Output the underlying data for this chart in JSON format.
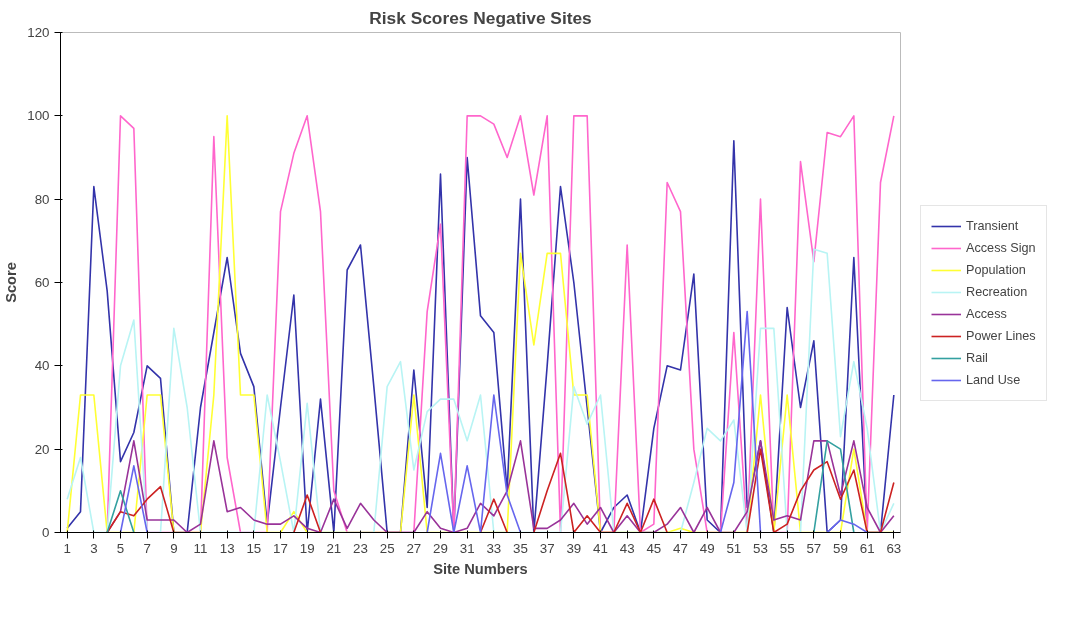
{
  "chart_data": {
    "type": "line",
    "title": "Risk Scores Negative Sites",
    "xlabel": "Site Numbers",
    "ylabel": "Score",
    "x": [
      1,
      2,
      3,
      4,
      5,
      6,
      7,
      8,
      9,
      10,
      11,
      12,
      13,
      14,
      15,
      16,
      17,
      18,
      19,
      20,
      21,
      22,
      23,
      24,
      25,
      26,
      27,
      28,
      29,
      30,
      31,
      32,
      33,
      34,
      35,
      36,
      37,
      38,
      39,
      40,
      41,
      42,
      43,
      44,
      45,
      46,
      47,
      48,
      49,
      50,
      51,
      52,
      53,
      54,
      55,
      56,
      57,
      58,
      59,
      60,
      61,
      62,
      63
    ],
    "xlim": [
      0.5,
      63.5
    ],
    "xticks": [
      1,
      3,
      5,
      7,
      9,
      11,
      13,
      15,
      17,
      19,
      21,
      23,
      25,
      27,
      29,
      31,
      33,
      35,
      37,
      39,
      41,
      43,
      45,
      47,
      49,
      51,
      53,
      55,
      57,
      59,
      61,
      63
    ],
    "ylim": [
      0,
      120
    ],
    "yticks": [
      0,
      20,
      40,
      60,
      80,
      100,
      120
    ],
    "grid": false,
    "legend": "right",
    "marker": "none",
    "line_style": "solid",
    "series": [
      {
        "name": "Transient",
        "color": "#3333aa",
        "values": [
          1,
          5,
          83,
          58,
          17,
          24,
          40,
          37,
          0,
          0,
          30,
          48,
          66,
          43,
          35,
          2,
          30,
          57,
          0,
          32,
          0,
          63,
          69,
          35,
          0,
          0,
          39,
          6,
          86,
          0,
          90,
          52,
          48,
          10,
          80,
          0,
          40,
          83,
          60,
          30,
          0,
          6,
          9,
          0,
          25,
          40,
          39,
          62,
          3,
          0,
          94,
          6,
          22,
          0,
          54,
          30,
          46,
          0,
          3,
          66,
          0,
          0,
          33
        ]
      },
      {
        "name": "Access Sign",
        "color": "#ff66cc",
        "values": [
          null,
          null,
          null,
          0,
          100,
          97,
          0,
          0,
          0,
          0,
          0,
          95,
          18,
          0,
          0,
          0,
          77,
          91,
          100,
          77,
          10,
          0,
          0,
          0,
          0,
          0,
          0,
          53,
          74,
          0,
          100,
          100,
          98,
          90,
          100,
          81,
          100,
          0,
          100,
          100,
          0,
          0,
          69,
          0,
          2,
          84,
          77,
          20,
          0,
          0,
          48,
          0,
          80,
          0,
          0,
          89,
          65,
          96,
          95,
          100,
          0,
          84,
          100
        ]
      },
      {
        "name": "Population",
        "color": "#ffff33",
        "values": [
          0,
          33,
          33,
          0,
          0,
          0,
          33,
          33,
          0,
          0,
          0,
          33,
          100,
          33,
          33,
          0,
          0,
          5,
          0,
          0,
          0,
          0,
          0,
          0,
          0,
          0,
          33,
          0,
          0,
          0,
          0,
          0,
          0,
          0,
          67,
          45,
          67,
          67,
          33,
          33,
          0,
          0,
          0,
          0,
          0,
          0,
          1,
          0,
          0,
          0,
          0,
          0,
          33,
          0,
          33,
          0,
          0,
          0,
          0,
          20,
          0,
          0,
          0
        ]
      },
      {
        "name": "Recreation",
        "color": "#b8f4f4",
        "values": [
          8,
          18,
          0,
          0,
          40,
          51,
          0,
          0,
          49,
          30,
          0,
          0,
          0,
          0,
          0,
          33,
          17,
          0,
          31,
          0,
          0,
          0,
          0,
          0,
          35,
          41,
          15,
          29,
          32,
          32,
          22,
          33,
          0,
          0,
          0,
          0,
          0,
          0,
          35,
          26,
          33,
          0,
          0,
          0,
          0,
          0,
          0,
          12,
          25,
          22,
          27,
          0,
          49,
          49,
          0,
          0,
          68,
          67,
          23,
          41,
          25,
          0,
          7
        ]
      },
      {
        "name": "Access",
        "color": "#993399",
        "values": [
          null,
          null,
          null,
          0,
          5,
          22,
          3,
          3,
          3,
          0,
          2,
          22,
          5,
          6,
          3,
          2,
          2,
          4,
          1,
          0,
          8,
          1,
          7,
          3,
          0,
          0,
          0,
          5,
          1,
          0,
          1,
          7,
          4,
          10,
          22,
          1,
          1,
          3,
          7,
          2,
          6,
          0,
          4,
          0,
          0,
          2,
          6,
          0,
          6,
          0,
          0,
          5,
          22,
          3,
          4,
          3,
          22,
          22,
          9,
          22,
          6,
          0,
          4
        ]
      },
      {
        "name": "Power Lines",
        "color": "#cc2222",
        "values": [
          null,
          null,
          null,
          0,
          5,
          4,
          8,
          11,
          0,
          null,
          null,
          null,
          null,
          null,
          null,
          null,
          null,
          0,
          9,
          0,
          null,
          null,
          null,
          null,
          null,
          null,
          null,
          null,
          null,
          null,
          null,
          0,
          8,
          0,
          null,
          0,
          10,
          19,
          0,
          4,
          0,
          0,
          7,
          0,
          8,
          0,
          null,
          null,
          null,
          null,
          null,
          0,
          20,
          0,
          2,
          10,
          15,
          17,
          8,
          15,
          0,
          0,
          12
        ]
      },
      {
        "name": "Rail",
        "color": "#33a0a0",
        "values": [
          null,
          null,
          null,
          0,
          10,
          0,
          null,
          null,
          null,
          null,
          null,
          null,
          null,
          null,
          null,
          null,
          null,
          null,
          null,
          null,
          null,
          null,
          null,
          null,
          null,
          null,
          null,
          null,
          null,
          null,
          null,
          null,
          null,
          null,
          null,
          null,
          null,
          null,
          null,
          null,
          null,
          null,
          null,
          null,
          null,
          null,
          null,
          null,
          null,
          null,
          null,
          null,
          null,
          null,
          null,
          null,
          0,
          22,
          20,
          0,
          null,
          null,
          null
        ]
      },
      {
        "name": "Land Use",
        "color": "#6666ee",
        "values": [
          null,
          null,
          null,
          null,
          0,
          16,
          0,
          null,
          null,
          null,
          null,
          null,
          null,
          null,
          null,
          null,
          null,
          null,
          null,
          null,
          null,
          null,
          null,
          null,
          null,
          null,
          null,
          0,
          19,
          0,
          16,
          0,
          33,
          9,
          0,
          null,
          null,
          null,
          null,
          null,
          null,
          null,
          null,
          null,
          null,
          null,
          null,
          null,
          null,
          0,
          12,
          53,
          0,
          null,
          null,
          null,
          null,
          0,
          3,
          2,
          0,
          null,
          null
        ]
      }
    ]
  }
}
